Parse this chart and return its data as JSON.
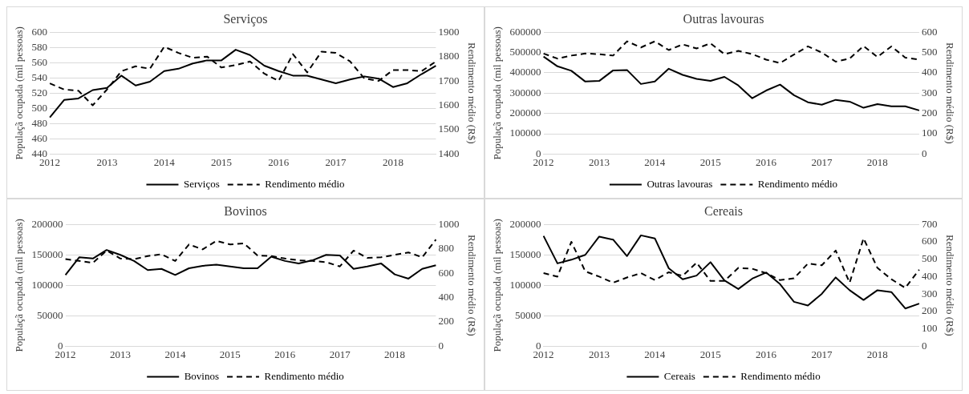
{
  "chart_data": [
    {
      "type": "line",
      "title": "Serviços",
      "ylabel": "Populaçã ocupada (mil pessoas)",
      "y2label": "Rendimento médio (R$)",
      "categories": [
        "2012",
        null,
        null,
        null,
        "2013",
        null,
        null,
        null,
        "2014",
        null,
        null,
        null,
        "2015",
        null,
        null,
        null,
        "2016",
        null,
        null,
        null,
        "2017",
        null,
        null,
        null,
        "2018",
        null,
        null,
        null
      ],
      "ylim": [
        440,
        600
      ],
      "yticks": [
        440,
        460,
        480,
        500,
        520,
        540,
        560,
        580,
        600
      ],
      "y2lim": [
        1400,
        1900
      ],
      "y2ticks": [
        1400,
        1500,
        1600,
        1700,
        1800,
        1900
      ],
      "grid": "y",
      "legend": "bottom",
      "series": [
        {
          "name": "Serviços",
          "color": "#000000",
          "line_style": "solid",
          "values": [
            488,
            511,
            513,
            524,
            527,
            543,
            530,
            535,
            549,
            552,
            559,
            563,
            563,
            577,
            570,
            556,
            549,
            543,
            543,
            538,
            533,
            538,
            542,
            539,
            528,
            533,
            545,
            556
          ]
        },
        {
          "name": "Rendimento médio",
          "color": "#000000",
          "line_style": "dashed",
          "axis": "y2",
          "values": [
            1690,
            1665,
            1660,
            1600,
            1665,
            1740,
            1760,
            1750,
            1840,
            1815,
            1795,
            1800,
            1755,
            1765,
            1780,
            1730,
            1700,
            1810,
            1735,
            1820,
            1815,
            1780,
            1710,
            1700,
            1745,
            1745,
            1740,
            1780
          ]
        }
      ]
    },
    {
      "type": "line",
      "title": "Outras lavouras",
      "ylabel": "Populaçã ocupada (mil pessoas)",
      "y2label": "Rendimento médio (R$)",
      "categories": [
        "2012",
        null,
        null,
        null,
        "2013",
        null,
        null,
        null,
        "2014",
        null,
        null,
        null,
        "2015",
        null,
        null,
        null,
        "2016",
        null,
        null,
        null,
        "2017",
        null,
        null,
        null,
        "2018",
        null,
        null,
        null
      ],
      "ylim": [
        0,
        600000
      ],
      "yticks": [
        0,
        100000,
        200000,
        300000,
        400000,
        500000,
        600000
      ],
      "y2lim": [
        0,
        600
      ],
      "y2ticks": [
        0,
        100,
        200,
        300,
        400,
        500,
        600
      ],
      "grid": "y",
      "legend": "bottom",
      "series": [
        {
          "name": "Outras lavouras",
          "color": "#000000",
          "line_style": "solid",
          "values": [
            480000,
            432000,
            410000,
            357000,
            360000,
            412000,
            414000,
            345000,
            357000,
            420000,
            390000,
            370000,
            360000,
            380000,
            338000,
            275000,
            313000,
            342000,
            290000,
            255000,
            243000,
            267000,
            258000,
            228000,
            246000,
            235000,
            235000,
            215000
          ]
        },
        {
          "name": "Rendimento médio",
          "color": "#000000",
          "line_style": "dashed",
          "axis": "y2",
          "values": [
            495,
            470,
            485,
            495,
            492,
            485,
            555,
            525,
            555,
            512,
            540,
            520,
            545,
            492,
            508,
            492,
            465,
            448,
            490,
            530,
            500,
            455,
            470,
            532,
            478,
            530,
            475,
            465
          ]
        }
      ]
    },
    {
      "type": "line",
      "title": "Bovinos",
      "ylabel": "Populaçã ocupada (mil pessoas)",
      "y2label": "Rendimento médio (R$)",
      "categories": [
        "2012",
        null,
        null,
        null,
        "2013",
        null,
        null,
        null,
        "2014",
        null,
        null,
        null,
        "2015",
        null,
        null,
        null,
        "2016",
        null,
        null,
        null,
        "2017",
        null,
        null,
        null,
        "2018",
        null,
        null,
        null
      ],
      "ylim": [
        0,
        200000
      ],
      "yticks": [
        0,
        50000,
        100000,
        150000,
        200000
      ],
      "y2lim": [
        0,
        1000
      ],
      "y2ticks": [
        0,
        200,
        400,
        600,
        800,
        1000
      ],
      "grid": "y",
      "legend": "bottom",
      "series": [
        {
          "name": "Bovinos",
          "color": "#000000",
          "line_style": "solid",
          "values": [
            117000,
            146000,
            144000,
            158000,
            150000,
            140000,
            125000,
            127000,
            117000,
            128000,
            132000,
            134000,
            131000,
            128000,
            128000,
            147000,
            140000,
            136000,
            141000,
            150000,
            149000,
            127000,
            131000,
            136000,
            118000,
            111000,
            127000,
            133000
          ]
        },
        {
          "name": "Rendimento médio",
          "color": "#000000",
          "line_style": "dashed",
          "axis": "y2",
          "values": [
            715,
            700,
            685,
            785,
            720,
            715,
            740,
            755,
            700,
            835,
            795,
            865,
            835,
            845,
            745,
            740,
            720,
            705,
            700,
            690,
            655,
            785,
            725,
            730,
            750,
            770,
            730,
            875
          ]
        }
      ]
    },
    {
      "type": "line",
      "title": "Cereais",
      "ylabel": "Populaçã ocupada (mil pessoas)",
      "y2label": "Rendimento médio (R$)",
      "categories": [
        "2012",
        null,
        null,
        null,
        "2013",
        null,
        null,
        null,
        "2014",
        null,
        null,
        null,
        "2015",
        null,
        null,
        null,
        "2016",
        null,
        null,
        null,
        "2017",
        null,
        null,
        null,
        "2018",
        null,
        null,
        null
      ],
      "ylim": [
        0,
        200000
      ],
      "yticks": [
        0,
        50000,
        100000,
        150000,
        200000
      ],
      "y2lim": [
        0,
        700
      ],
      "y2ticks": [
        0,
        100,
        200,
        300,
        400,
        500,
        600,
        700
      ],
      "grid": "y",
      "legend": "bottom",
      "series": [
        {
          "name": "Cereais",
          "color": "#000000",
          "line_style": "solid",
          "values": [
            181000,
            136000,
            142000,
            150000,
            180000,
            175000,
            148000,
            182000,
            177000,
            128000,
            110000,
            116000,
            138000,
            108000,
            94000,
            111000,
            121000,
            102000,
            73000,
            67000,
            86000,
            113000,
            92000,
            76000,
            92000,
            89000,
            62000,
            70000
          ]
        },
        {
          "name": "Rendimento médio",
          "color": "#000000",
          "line_style": "dashed",
          "axis": "y2",
          "values": [
            420,
            400,
            600,
            430,
            400,
            365,
            395,
            420,
            380,
            425,
            405,
            480,
            375,
            375,
            450,
            445,
            420,
            380,
            390,
            475,
            465,
            550,
            365,
            620,
            450,
            385,
            335,
            440
          ]
        }
      ]
    }
  ]
}
